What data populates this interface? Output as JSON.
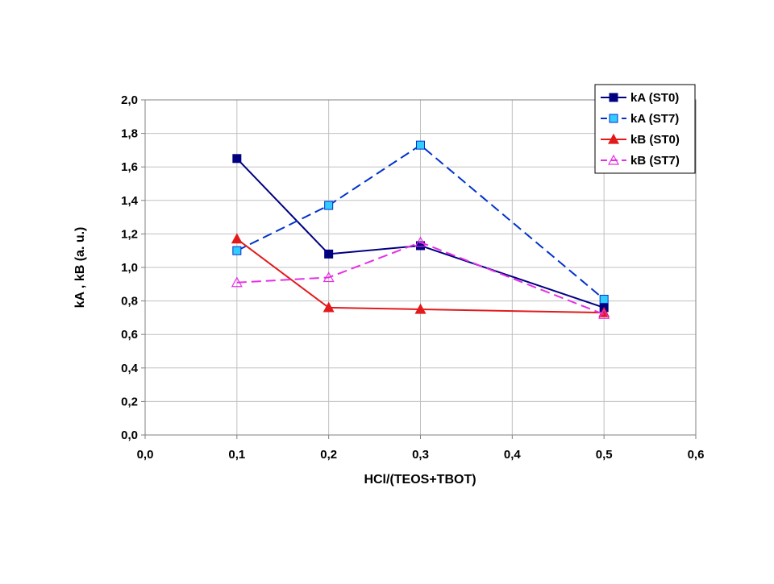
{
  "chart_data": {
    "type": "line",
    "title": "",
    "xlabel": "HCl/(TEOS+TBOT)",
    "ylabel": "kA , kB (a. u.)",
    "xlim": [
      0,
      0.6
    ],
    "ylim": [
      0,
      2.0
    ],
    "x_ticks": [
      0,
      0.1,
      0.2,
      0.3,
      0.4,
      0.5,
      0.6
    ],
    "x_tick_labels": [
      "0,0",
      "0,1",
      "0,2",
      "0,3",
      "0,4",
      "0,5",
      "0,6"
    ],
    "y_ticks": [
      0,
      0.2,
      0.4,
      0.6,
      0.8,
      1.0,
      1.2,
      1.4,
      1.6,
      1.8,
      2.0
    ],
    "y_tick_labels": [
      "0,0",
      "0,2",
      "0,4",
      "0,6",
      "0,8",
      "1,0",
      "1,2",
      "1,4",
      "1,6",
      "1,8",
      "2,0"
    ],
    "grid": true,
    "legend_position": "top-right",
    "series": [
      {
        "name": "kA (ST0)",
        "x": [
          0.1,
          0.2,
          0.3,
          0.5
        ],
        "y": [
          1.65,
          1.08,
          1.13,
          0.76
        ],
        "color": "#000080",
        "line_style": "solid",
        "marker": "square",
        "marker_fill": "#000080"
      },
      {
        "name": "kA (ST7)",
        "x": [
          0.1,
          0.2,
          0.3,
          0.5
        ],
        "y": [
          1.1,
          1.37,
          1.73,
          0.81
        ],
        "color": "#0033cc",
        "line_style": "dashed",
        "marker": "square",
        "marker_fill": "#33ccff"
      },
      {
        "name": "kB (ST0)",
        "x": [
          0.1,
          0.2,
          0.3,
          0.5
        ],
        "y": [
          1.17,
          0.76,
          0.75,
          0.73
        ],
        "color": "#e31a1c",
        "line_style": "solid",
        "marker": "triangle",
        "marker_fill": "#e31a1c"
      },
      {
        "name": "kB (ST7)",
        "x": [
          0.1,
          0.2,
          0.3,
          0.5
        ],
        "y": [
          0.91,
          0.94,
          1.15,
          0.72
        ],
        "color": "#e62ee6",
        "line_style": "dashed",
        "marker": "triangle",
        "marker_fill": "none"
      }
    ]
  }
}
